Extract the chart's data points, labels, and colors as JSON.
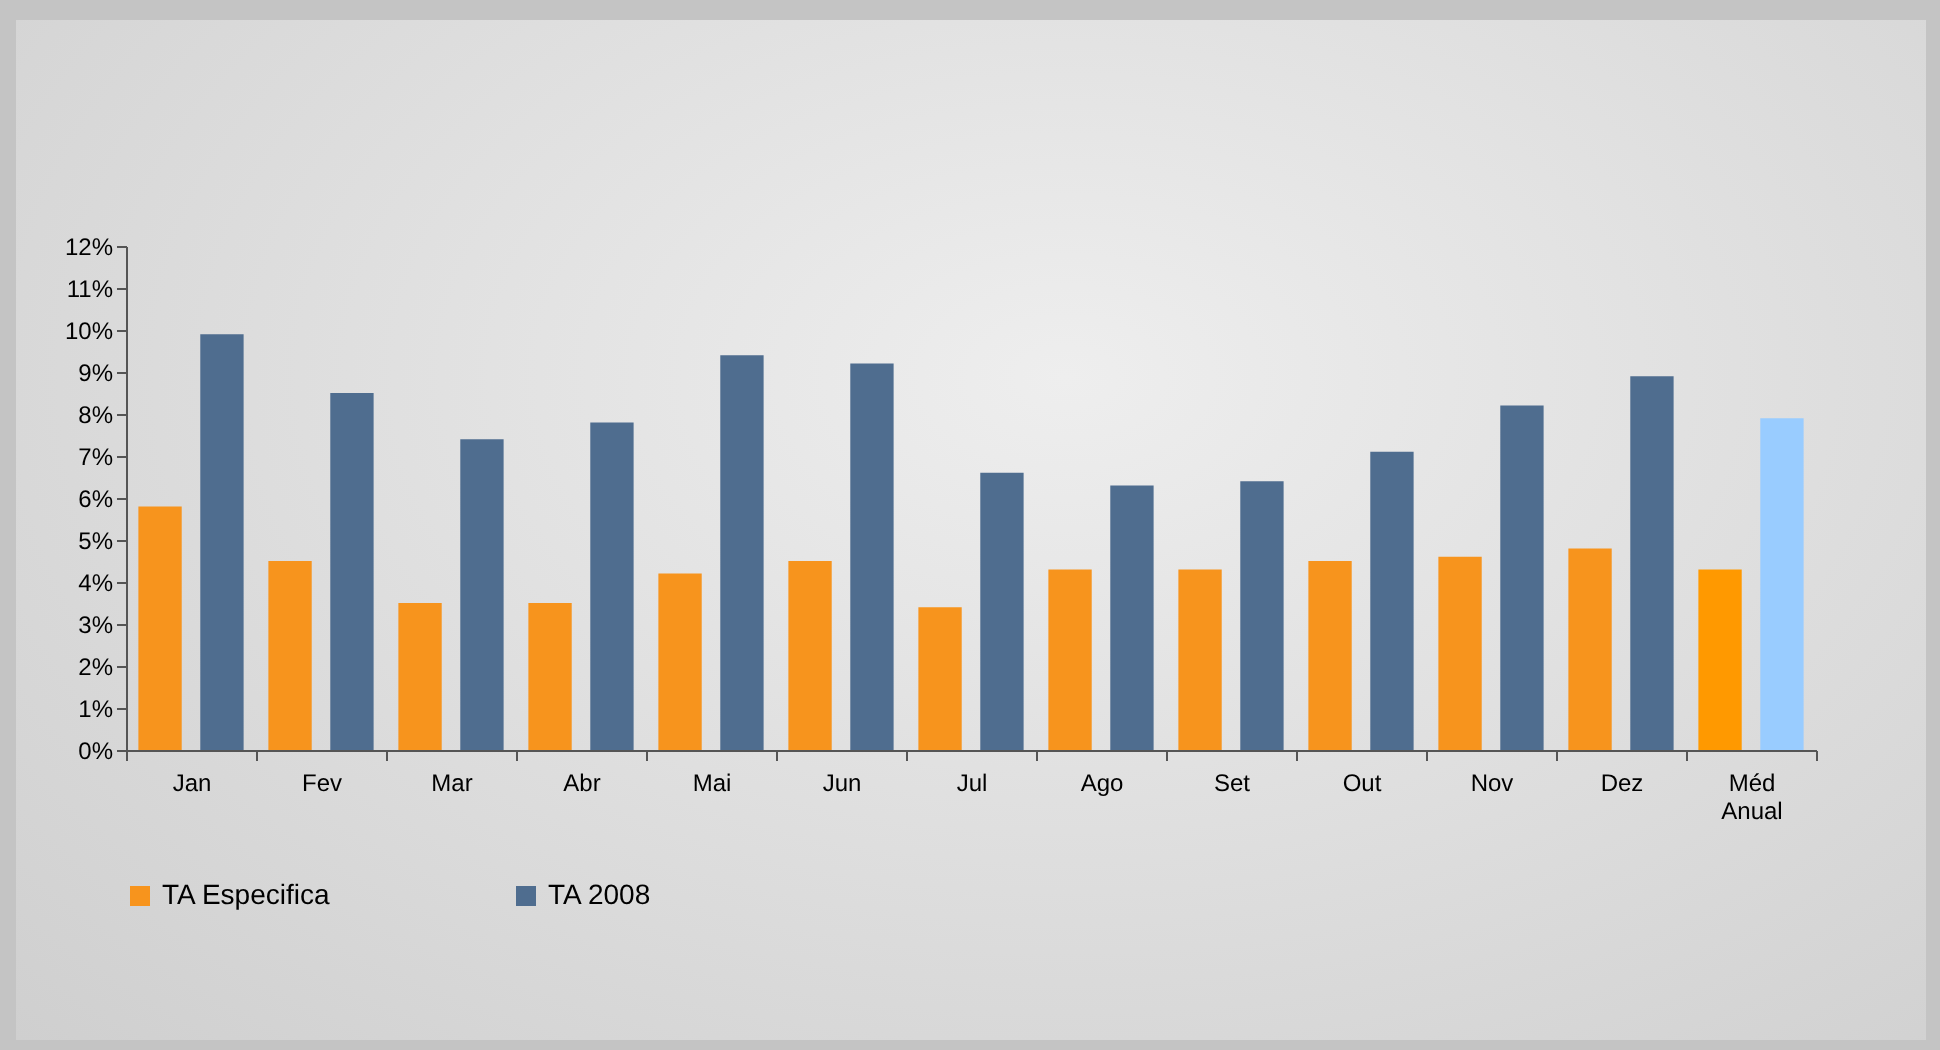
{
  "chart_data": {
    "type": "bar",
    "categories": [
      "Jan",
      "Fev",
      "Mar",
      "Abr",
      "Mai",
      "Jun",
      "Jul",
      "Ago",
      "Set",
      "Out",
      "Nov",
      "Dez",
      "Méd Anual"
    ],
    "series": [
      {
        "name": "TA Especifica",
        "color": "#f7941d",
        "colors": [
          null,
          null,
          null,
          null,
          null,
          null,
          null,
          null,
          null,
          null,
          null,
          null,
          "#ff9900"
        ],
        "values": [
          5.8,
          4.5,
          3.5,
          3.5,
          4.2,
          4.5,
          3.4,
          4.3,
          4.3,
          4.5,
          4.6,
          4.8,
          4.3
        ]
      },
      {
        "name": "TA 2008",
        "color": "#4f6d8f",
        "colors": [
          null,
          null,
          null,
          null,
          null,
          null,
          null,
          null,
          null,
          null,
          null,
          null,
          "#99ccff"
        ],
        "values": [
          9.9,
          8.5,
          7.4,
          7.8,
          9.4,
          9.2,
          6.6,
          6.3,
          6.4,
          7.1,
          8.2,
          8.9,
          7.9
        ]
      }
    ],
    "ylim": [
      0,
      12
    ],
    "yticks": [
      {
        "value": 0,
        "label": "0%"
      },
      {
        "value": 1,
        "label": "1%"
      },
      {
        "value": 2,
        "label": "2%"
      },
      {
        "value": 3,
        "label": "3%"
      },
      {
        "value": 4,
        "label": "4%"
      },
      {
        "value": 5,
        "label": "5%"
      },
      {
        "value": 6,
        "label": "6%"
      },
      {
        "value": 7,
        "label": "7%"
      },
      {
        "value": 8,
        "label": "8%"
      },
      {
        "value": 9,
        "label": "9%"
      },
      {
        "value": 10,
        "label": "10%"
      },
      {
        "value": 11,
        "label": "11%"
      },
      {
        "value": 12,
        "label": "12%"
      }
    ],
    "grid": false,
    "legend": "bottom"
  }
}
